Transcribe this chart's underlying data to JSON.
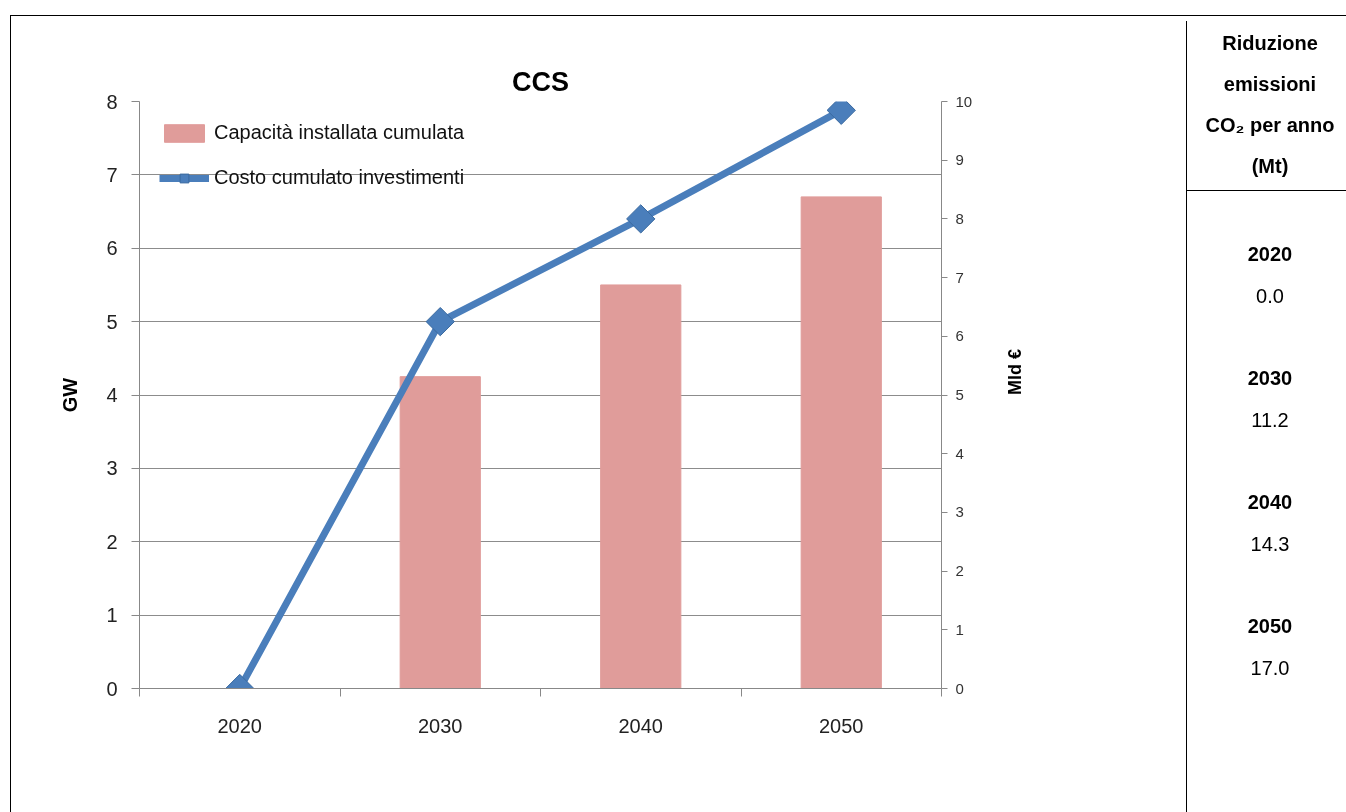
{
  "chart_data": {
    "type": "bar",
    "title": "CCS",
    "ylabel": "GW",
    "y2label": "Mld €",
    "categories": [
      "2020",
      "2030",
      "2040",
      "2050"
    ],
    "series": [
      {
        "name": "Capacità installata cumulata",
        "color": "#e09c9a",
        "values": [
          0,
          4.25,
          5.5,
          6.7
        ]
      },
      {
        "name": "Costo cumulato investimenti",
        "type": "line",
        "axis": "y2",
        "color": "#4a7ebb",
        "values": [
          0,
          6.25,
          8.0,
          9.85
        ]
      }
    ],
    "ylim": [
      0,
      8
    ],
    "yticks": [
      0,
      1,
      2,
      3,
      4,
      5,
      6,
      7,
      8
    ],
    "y2lim": [
      0,
      10
    ],
    "y2ticks": [
      0,
      1,
      2,
      3,
      4,
      5,
      6,
      7,
      8,
      9,
      10
    ],
    "grid": "y",
    "legend": "top left",
    "marker": "diamond",
    "annotations": [
      "Riduzione emissioni CO₂ per anno (Mt)",
      "2020",
      "0.0",
      "2030",
      "11.2",
      "2040",
      "14.3",
      "2050",
      "17.0"
    ]
  }
}
